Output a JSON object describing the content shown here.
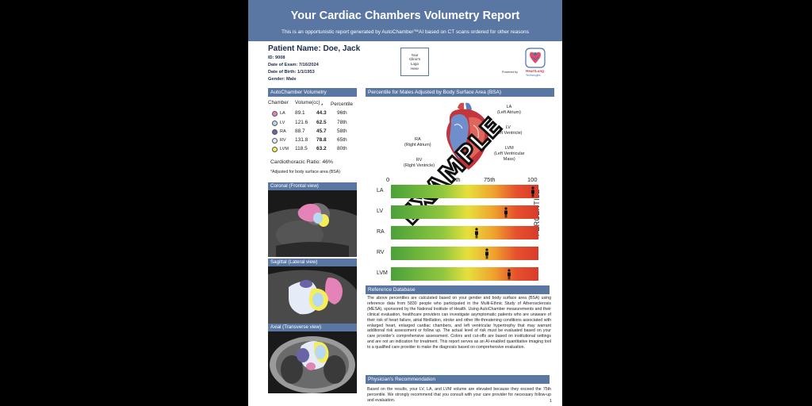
{
  "header": {
    "title": "Your Cardiac Chambers Volumetry Report",
    "subtitle": "This is an opportunistic report generated by AutoChamber™AI  based on CT scans ordered for other reasons"
  },
  "patient": {
    "name": "Patient Name: Doe, Jack",
    "id": "ID: 9008",
    "date_of_exam": "Date of Exam: 7/16/2024",
    "date_of_birth": "Date of Birth: 1/1/1953",
    "gender": "Gender: Male"
  },
  "clinic_logo_placeholder": "Your\nClinic's\nLogo\nHere",
  "brand": {
    "powered_by": "Powered by",
    "name": "HeartLung",
    "tagline": "Technologies"
  },
  "volumetry": {
    "section_title": "AutoChamber Volumetry",
    "col_chamber": "Chamber",
    "col_volume": "Volume(cc)",
    "col_percentile": "Percentile",
    "asterisk": "*",
    "rows": [
      {
        "abbr": "LA",
        "color": "#e483b7",
        "volume": "89.1",
        "adjusted": "44.3",
        "percentile": "96th"
      },
      {
        "abbr": "LV",
        "color": "#b9d9f2",
        "volume": "121.6",
        "adjusted": "62.5",
        "percentile": "78th"
      },
      {
        "abbr": "RA",
        "color": "#6a63a6",
        "volume": "88.7",
        "adjusted": "45.7",
        "percentile": "58th"
      },
      {
        "abbr": "RV",
        "color": "#e6ecf7",
        "volume": "131.8",
        "adjusted": "78.8",
        "percentile": "65th"
      },
      {
        "abbr": "LVM",
        "color": "#f5ee57",
        "volume": "118.5",
        "adjusted": "63.2",
        "percentile": "80th"
      }
    ],
    "cardiothoracic_ratio": "Cardiothoracic Ratio: 46%",
    "bsa_note": "*Adjusted for body surface area (BSA)"
  },
  "ct_views": {
    "coronal": "Coronal (Frontal view)",
    "sagittal": "Sagittal (Lateral view)",
    "axial": "Axial (Transverse view)"
  },
  "percentile_panel": {
    "section_title": "Percentile for Males Adjusted by Body Surface Area (BSA)",
    "heart_labels": {
      "la": "LA\n(Left Atrium)",
      "lv": "LV\n(Left Ventricle)",
      "lvm": "LVM\n(Left Ventricular\nMass)",
      "ra": "RA\n(Right Atrium)",
      "rv": "RV\n(Right Ventricle)"
    },
    "axis_ticks": [
      "0",
      "50th",
      "75th",
      "100"
    ],
    "vertical_label": "PERCENTILE",
    "stamp": "EXAMPLE",
    "gauges": [
      {
        "label": "LA",
        "percentile": 96
      },
      {
        "label": "LV",
        "percentile": 78
      },
      {
        "label": "RA",
        "percentile": 58
      },
      {
        "label": "RV",
        "percentile": 65
      },
      {
        "label": "LVM",
        "percentile": 80
      }
    ]
  },
  "reference": {
    "section_title": "Reference Database",
    "text": "The above percentiles are calculated based on your gender and body surface area (BSA) using reference data from 5830 people who participated in the Multi-Ethnic Study of Atherosclerosis (MESA), sponsored by the National Institute of Health. Using AutoChamber measurements and their clinical evaluation, healthcare providers can investigate asymptomatic patients who are unaware of their risk of heart failure, atrial fibrillation, stroke and other life-threatening conditions associated with enlarged heart, enlarged cardiac chambers, and left ventricular hypertrophy that may warrant additional risk assessment or follow up. The actual level of risk must be evaluated based on your care provider's comprehensive assessment. Colors and cut-offs are based on institutional settings and are not an indication for treatment. This report serves as an AI-enabled quantitative imaging tool to a qualified care provider to make the diagnosis based on comprehensive evaluation."
  },
  "physician": {
    "section_title": "Physician's Recommendation",
    "text": "Based on the results, your LV, LA, and LVM volume are elevated because they exceed the 75th percentile. We strongly recommend that you consult with your care provider for necessary follow-up and evaluation."
  },
  "page_number": "1"
}
